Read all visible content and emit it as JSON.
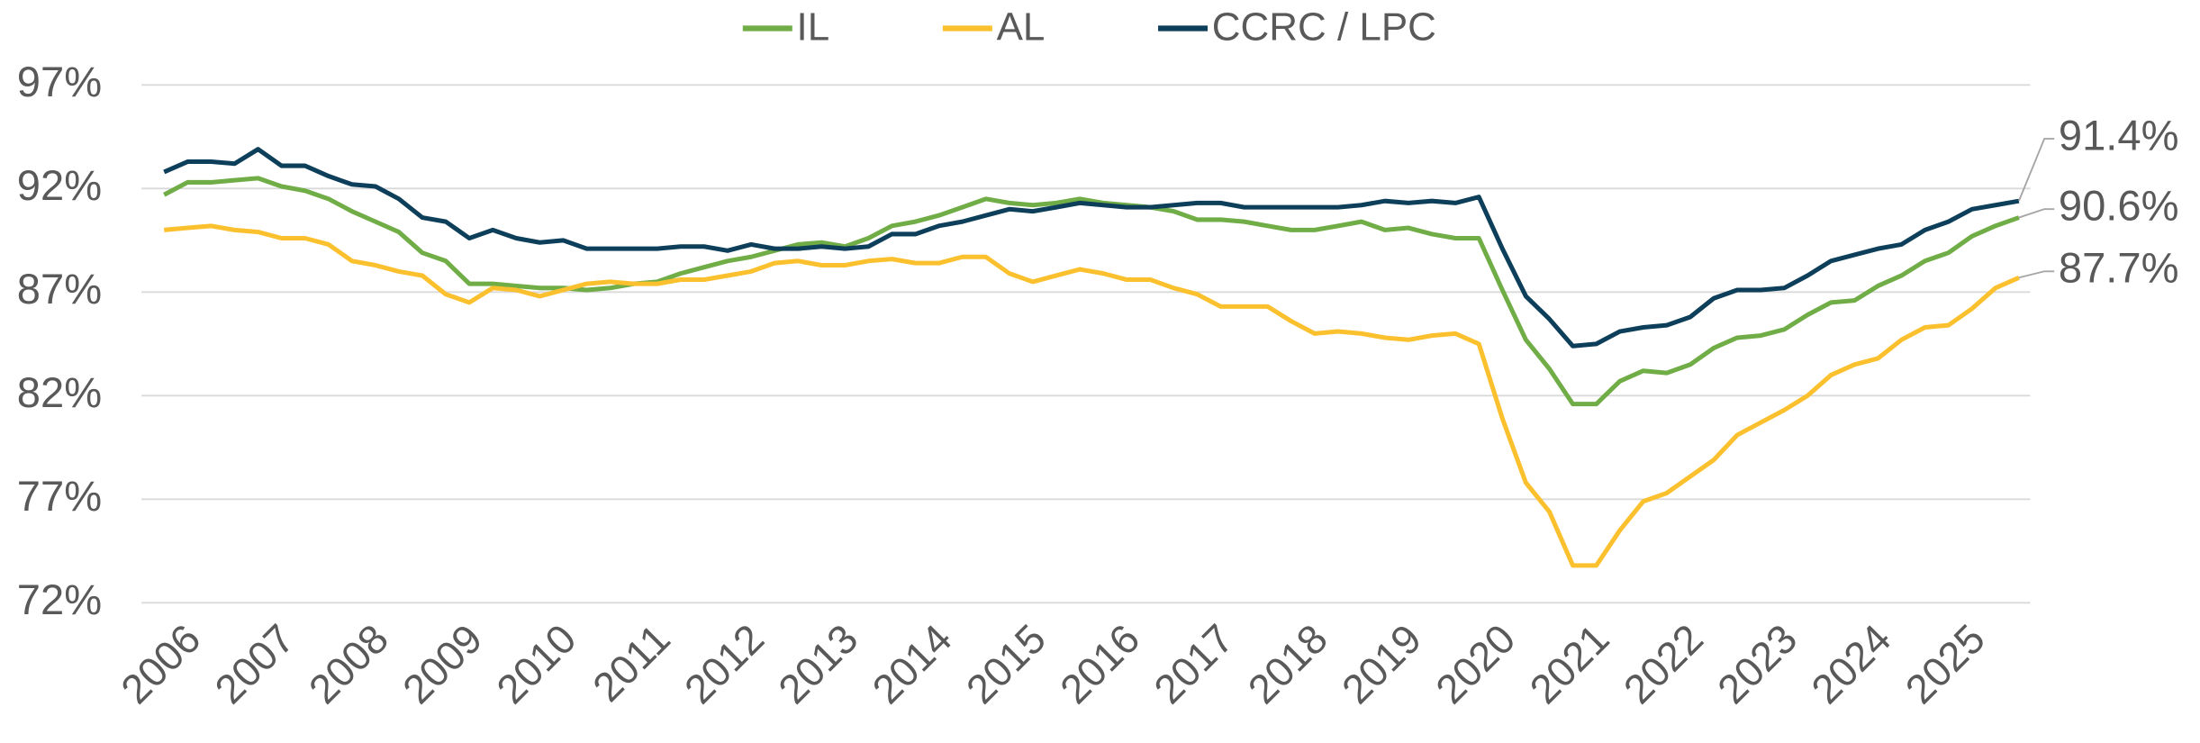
{
  "chart_data": {
    "type": "line",
    "categories": [
      "2006",
      null,
      null,
      null,
      "2007",
      null,
      null,
      null,
      "2008",
      null,
      null,
      null,
      "2009",
      null,
      null,
      null,
      "2010",
      null,
      null,
      null,
      "2011",
      null,
      null,
      null,
      "2012",
      null,
      null,
      null,
      "2013",
      null,
      null,
      null,
      "2014",
      null,
      null,
      null,
      "2015",
      null,
      null,
      null,
      "2016",
      null,
      null,
      null,
      "2017",
      null,
      null,
      null,
      "2018",
      null,
      null,
      null,
      "2019",
      null,
      null,
      null,
      "2020",
      null,
      null,
      null,
      "2021",
      null,
      null,
      null,
      "2022",
      null,
      null,
      null,
      "2023",
      null,
      null,
      null,
      "2024",
      null,
      null,
      null,
      "2025",
      null,
      null,
      null
    ],
    "series": [
      {
        "name": "IL",
        "color": "#70ad47",
        "values": [
          91.7,
          92.3,
          92.3,
          92.4,
          92.5,
          92.1,
          91.9,
          91.5,
          90.9,
          90.4,
          89.9,
          88.9,
          88.5,
          87.4,
          87.4,
          87.3,
          87.2,
          87.2,
          87.1,
          87.2,
          87.4,
          87.5,
          87.9,
          88.2,
          88.5,
          88.7,
          89.0,
          89.3,
          89.4,
          89.2,
          89.6,
          90.2,
          90.4,
          90.7,
          91.1,
          91.5,
          91.3,
          91.2,
          91.3,
          91.5,
          91.3,
          91.2,
          91.1,
          90.9,
          90.5,
          90.5,
          90.4,
          90.2,
          90.0,
          90.0,
          90.2,
          90.4,
          90.0,
          90.1,
          89.8,
          89.6,
          89.6,
          87.1,
          84.7,
          83.3,
          81.6,
          81.6,
          82.7,
          83.2,
          83.1,
          83.5,
          84.3,
          84.8,
          84.9,
          85.2,
          85.9,
          86.5,
          86.6,
          87.3,
          87.8,
          88.5,
          88.9,
          89.7,
          90.2,
          90.6
        ],
        "value_labels": [
          null,
          null,
          null,
          null,
          null,
          null,
          null,
          null,
          null,
          null,
          null,
          null,
          null,
          null,
          null,
          null,
          null,
          null,
          null,
          null,
          null,
          null,
          null,
          null,
          null,
          null,
          null,
          null,
          null,
          null,
          null,
          null,
          null,
          null,
          null,
          null,
          null,
          null,
          null,
          null,
          null,
          null,
          null,
          null,
          null,
          null,
          null,
          null,
          null,
          null,
          null,
          null,
          null,
          null,
          null,
          null,
          null,
          null,
          null,
          null,
          null,
          null,
          null,
          null,
          null,
          null,
          null,
          null,
          null,
          null,
          null,
          null,
          null,
          null,
          null,
          null,
          null,
          null,
          null,
          "90.6%"
        ]
      },
      {
        "name": "AL",
        "color": "#fbc02d",
        "values": [
          90.0,
          90.1,
          90.2,
          90.0,
          89.9,
          89.6,
          89.6,
          89.3,
          88.5,
          88.3,
          88.0,
          87.8,
          86.9,
          86.5,
          87.2,
          87.1,
          86.8,
          87.1,
          87.4,
          87.5,
          87.4,
          87.4,
          87.6,
          87.6,
          87.8,
          88.0,
          88.4,
          88.5,
          88.3,
          88.3,
          88.5,
          88.6,
          88.4,
          88.4,
          88.7,
          88.7,
          87.9,
          87.5,
          87.8,
          88.1,
          87.9,
          87.6,
          87.6,
          87.2,
          86.9,
          86.3,
          86.3,
          86.3,
          85.6,
          85.0,
          85.1,
          85.0,
          84.8,
          84.7,
          84.9,
          85.0,
          84.5,
          80.9,
          77.8,
          76.4,
          73.8,
          73.8,
          75.5,
          76.9,
          77.3,
          78.1,
          78.9,
          80.1,
          80.7,
          81.3,
          82.0,
          83.0,
          83.5,
          83.8,
          84.7,
          85.3,
          85.4,
          86.2,
          87.2,
          87.7
        ],
        "value_labels": [
          null,
          null,
          null,
          null,
          null,
          null,
          null,
          null,
          null,
          null,
          null,
          null,
          null,
          null,
          null,
          null,
          null,
          null,
          null,
          null,
          null,
          null,
          null,
          null,
          null,
          null,
          null,
          null,
          null,
          null,
          null,
          null,
          null,
          null,
          null,
          null,
          null,
          null,
          null,
          null,
          null,
          null,
          null,
          null,
          null,
          null,
          null,
          null,
          null,
          null,
          null,
          null,
          null,
          null,
          null,
          null,
          null,
          null,
          null,
          null,
          null,
          null,
          null,
          null,
          null,
          null,
          null,
          null,
          null,
          null,
          null,
          null,
          null,
          null,
          null,
          null,
          null,
          null,
          null,
          "87.7%"
        ]
      },
      {
        "name": "CCRC / LPC",
        "color": "#0d3f5a",
        "values": [
          92.8,
          93.3,
          93.3,
          93.2,
          93.9,
          93.1,
          93.1,
          92.6,
          92.2,
          92.1,
          91.5,
          90.6,
          90.4,
          89.6,
          90.0,
          89.6,
          89.4,
          89.5,
          89.1,
          89.1,
          89.1,
          89.1,
          89.2,
          89.2,
          89.0,
          89.3,
          89.1,
          89.1,
          89.2,
          89.1,
          89.2,
          89.8,
          89.8,
          90.2,
          90.4,
          90.7,
          91.0,
          90.9,
          91.1,
          91.3,
          91.2,
          91.1,
          91.1,
          91.2,
          91.3,
          91.3,
          91.1,
          91.1,
          91.1,
          91.1,
          91.1,
          91.2,
          91.4,
          91.3,
          91.4,
          91.3,
          91.6,
          89.1,
          86.8,
          85.7,
          84.4,
          84.5,
          85.1,
          85.3,
          85.4,
          85.8,
          86.7,
          87.1,
          87.1,
          87.2,
          87.8,
          88.5,
          88.8,
          89.1,
          89.3,
          90.0,
          90.4,
          91.0,
          91.2,
          91.4
        ],
        "value_labels": [
          null,
          null,
          null,
          null,
          null,
          null,
          null,
          null,
          null,
          null,
          null,
          null,
          null,
          null,
          null,
          null,
          null,
          null,
          null,
          null,
          null,
          null,
          null,
          null,
          null,
          null,
          null,
          null,
          null,
          null,
          null,
          null,
          null,
          null,
          null,
          null,
          null,
          null,
          null,
          null,
          null,
          null,
          null,
          null,
          null,
          null,
          null,
          null,
          null,
          null,
          null,
          null,
          null,
          null,
          null,
          null,
          null,
          null,
          null,
          null,
          null,
          null,
          null,
          null,
          null,
          null,
          null,
          null,
          null,
          null,
          null,
          null,
          null,
          null,
          null,
          null,
          null,
          null,
          null,
          "91.4%"
        ]
      }
    ],
    "ylim": [
      72,
      97
    ],
    "yticks": [
      {
        "value": 72,
        "label": "72%"
      },
      {
        "value": 77,
        "label": "77%"
      },
      {
        "value": 82,
        "label": "82%"
      },
      {
        "value": 87,
        "label": "87%"
      },
      {
        "value": 92,
        "label": "92%"
      },
      {
        "value": 97,
        "label": "97%"
      }
    ],
    "grid": true,
    "legend": "top"
  }
}
